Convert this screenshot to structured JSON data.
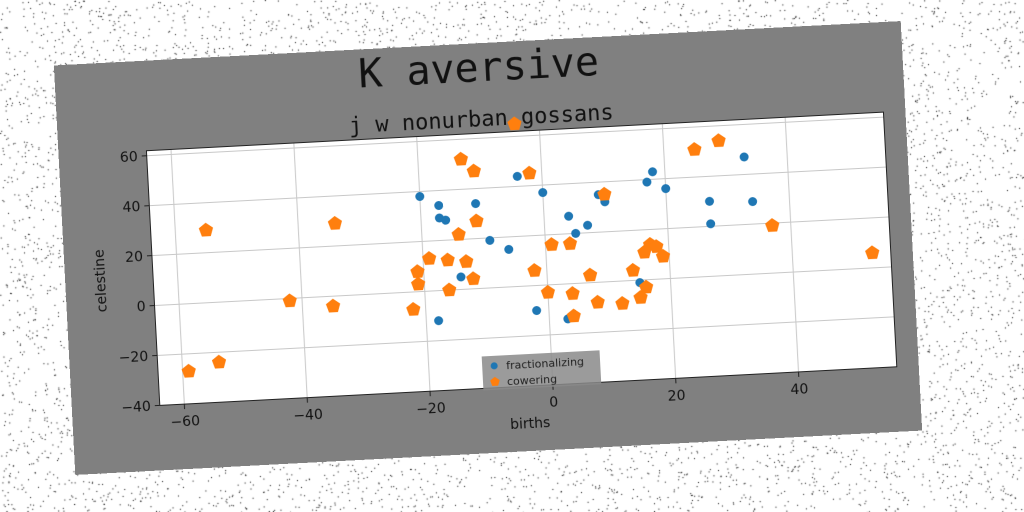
{
  "chart_data": {
    "type": "scatter",
    "title": "K aversive",
    "subtitle": "j w nonurban gossans",
    "xlabel": "births",
    "ylabel": "celestine",
    "xlim": [
      -64,
      56
    ],
    "ylim": [
      -40,
      62
    ],
    "xticks": [
      -60,
      -40,
      -20,
      0,
      20,
      40
    ],
    "yticks": [
      -40,
      -20,
      0,
      20,
      40,
      60
    ],
    "grid": true,
    "legend_position": "lower-center",
    "series": [
      {
        "name": "fractionalizing",
        "color": "#1f77b4",
        "marker": "circle",
        "points": [
          [
            -20,
            38
          ],
          [
            -17,
            34
          ],
          [
            -17,
            29
          ],
          [
            -16,
            28
          ],
          [
            -11,
            34
          ],
          [
            -4,
            44
          ],
          [
            0,
            37
          ],
          [
            4,
            27
          ],
          [
            -9,
            19
          ],
          [
            -6,
            15
          ],
          [
            -14,
            5
          ],
          [
            5,
            20
          ],
          [
            7,
            23
          ],
          [
            9,
            35
          ],
          [
            10,
            32
          ],
          [
            17,
            39
          ],
          [
            18,
            43
          ],
          [
            20,
            36
          ],
          [
            27,
            30
          ],
          [
            27,
            21
          ],
          [
            33,
            47
          ],
          [
            34,
            29
          ],
          [
            15,
            -1
          ],
          [
            3,
            -14
          ],
          [
            -2,
            -10
          ],
          [
            -18,
            -12
          ]
        ]
      },
      {
        "name": "cowering",
        "color": "#ff7f0e",
        "marker": "pentagon",
        "points": [
          [
            -4,
            65
          ],
          [
            -13,
            52
          ],
          [
            -11,
            47
          ],
          [
            -2,
            45
          ],
          [
            -11,
            27
          ],
          [
            -14,
            22
          ],
          [
            -19,
            13
          ],
          [
            -16,
            12
          ],
          [
            -13,
            11
          ],
          [
            -21,
            8
          ],
          [
            -21,
            3
          ],
          [
            -16,
            0
          ],
          [
            -12,
            4
          ],
          [
            -55,
            29
          ],
          [
            -34,
            29
          ],
          [
            -42,
            -1
          ],
          [
            -35,
            -4
          ],
          [
            -22,
            -7
          ],
          [
            -59,
            -27
          ],
          [
            -54,
            -24
          ],
          [
            -2,
            6
          ],
          [
            1,
            16
          ],
          [
            4,
            16
          ],
          [
            0,
            -3
          ],
          [
            4,
            -4
          ],
          [
            4,
            -13
          ],
          [
            7,
            3
          ],
          [
            8,
            -8
          ],
          [
            10,
            35
          ],
          [
            12,
            -9
          ],
          [
            14,
            4
          ],
          [
            15,
            -7
          ],
          [
            16,
            11
          ],
          [
            17,
            14
          ],
          [
            18,
            13
          ],
          [
            19,
            9
          ],
          [
            16,
            -3
          ],
          [
            25,
            51
          ],
          [
            29,
            54
          ],
          [
            37,
            19
          ],
          [
            53,
            6
          ]
        ]
      }
    ]
  }
}
